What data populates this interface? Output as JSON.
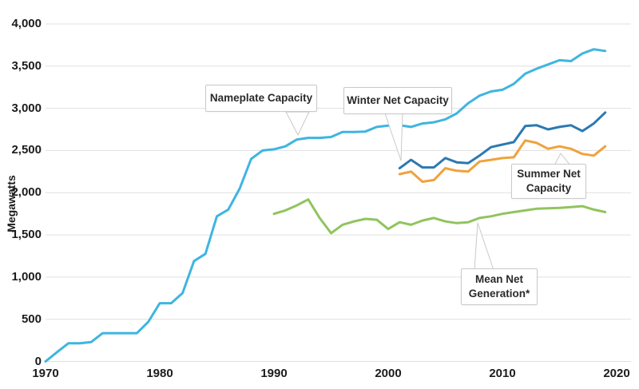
{
  "chart_data": {
    "type": "line",
    "title": "",
    "xlabel": "",
    "ylabel": "Megawatts",
    "xlim": [
      1970,
      2020
    ],
    "ylim": [
      0,
      4000
    ],
    "grid": "horizontal",
    "legend": "callout-annotations",
    "x_ticks": [
      "1970",
      "1980",
      "1990",
      "2000",
      "2010",
      "2020"
    ],
    "y_ticks": [
      "4,000",
      "3,500",
      "3,000",
      "2,500",
      "2,000",
      "1,500",
      "1,000",
      "500",
      "0"
    ],
    "series": [
      {
        "id": "nameplate-capacity",
        "name": "Nameplate Capacity",
        "color": "#3fb5e0",
        "start_year": 1970,
        "end_year": 2019,
        "values": [
          0,
          110,
          215,
          215,
          230,
          335,
          335,
          335,
          335,
          470,
          690,
          690,
          810,
          1190,
          1275,
          1720,
          1800,
          2050,
          2400,
          2500,
          2515,
          2550,
          2630,
          2650,
          2650,
          2660,
          2720,
          2720,
          2725,
          2780,
          2795,
          2800,
          2780,
          2820,
          2835,
          2870,
          2940,
          3060,
          3150,
          3200,
          3220,
          3290,
          3410,
          3470,
          3520,
          3570,
          3560,
          3650,
          3700,
          3680
        ]
      },
      {
        "id": "winter-net-capacity",
        "name": "Winter Net Capacity",
        "color": "#2b79b2",
        "start_year": 2001,
        "end_year": 2019,
        "values": [
          2290,
          2390,
          2300,
          2300,
          2410,
          2360,
          2350,
          2440,
          2540,
          2570,
          2600,
          2790,
          2800,
          2750,
          2780,
          2800,
          2730,
          2820,
          2950
        ]
      },
      {
        "id": "summer-net-capacity",
        "name": "Summer Net Capacity",
        "color": "#f0a23c",
        "start_year": 2001,
        "end_year": 2019,
        "values": [
          2220,
          2250,
          2130,
          2150,
          2290,
          2260,
          2250,
          2370,
          2390,
          2410,
          2420,
          2620,
          2590,
          2520,
          2550,
          2520,
          2460,
          2440,
          2550
        ]
      },
      {
        "id": "mean-net-generation",
        "name": "Mean Net Generation*",
        "color": "#90c45e",
        "start_year": 1990,
        "end_year": 2019,
        "values": [
          1750,
          1790,
          1850,
          1920,
          1700,
          1520,
          1620,
          1660,
          1690,
          1680,
          1570,
          1650,
          1620,
          1670,
          1700,
          1660,
          1640,
          1650,
          1700,
          1720,
          1750,
          1770,
          1790,
          1810,
          1815,
          1820,
          1830,
          1840,
          1800,
          1770
        ]
      }
    ],
    "annotations": {
      "nameplate": {
        "label": "Nameplate Capacity"
      },
      "winter": {
        "label": "Winter Net Capacity"
      },
      "summer": {
        "label": "Summer Net Capacity"
      },
      "mean": {
        "label": "Mean Net Generation*"
      }
    },
    "colors": {
      "gridline": "#e0e0e0",
      "axis_text": "#1c1c1c",
      "callout_border": "#c9c9c9"
    }
  }
}
